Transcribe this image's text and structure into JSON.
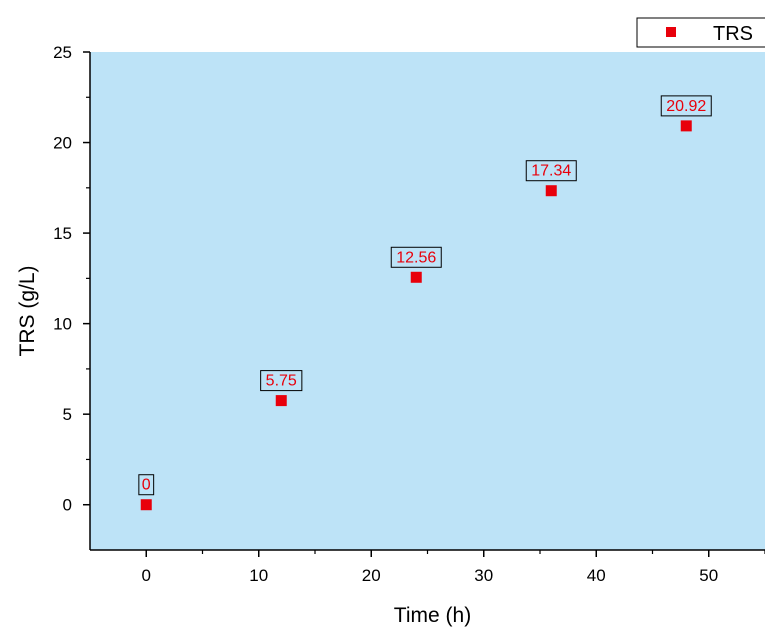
{
  "chart_data": {
    "type": "scatter",
    "xlabel": "Time (h)",
    "ylabel": "TRS (g/L)",
    "xlim": [
      -5,
      55
    ],
    "ylim": [
      -2.5,
      25
    ],
    "xticks": [
      0,
      10,
      20,
      30,
      40,
      50
    ],
    "yticks": [
      0,
      5,
      10,
      15,
      20,
      25
    ],
    "grid": false,
    "legend_position": "top-right",
    "plot_background": "#bde3f7",
    "series": [
      {
        "name": "TRS",
        "color": "#e8000b",
        "marker": "square",
        "x": [
          0,
          12,
          24,
          36,
          48
        ],
        "y": [
          0,
          5.75,
          12.56,
          17.34,
          20.92
        ],
        "labels": [
          "0",
          "5.75",
          "12.56",
          "17.34",
          "20.92"
        ]
      }
    ]
  }
}
